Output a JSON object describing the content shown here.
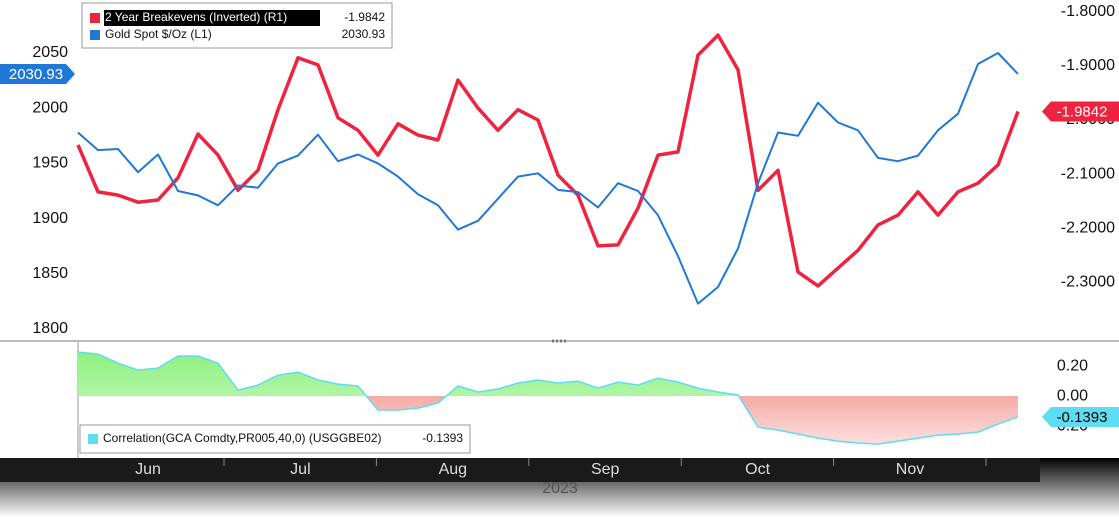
{
  "chart_data": [
    {
      "type": "line",
      "ylim": [
        1790,
        2098
      ],
      "yticks": [
        1800,
        1850,
        1900,
        1950,
        2000,
        2050
      ],
      "y2lim": [
        -2.407,
        -1.778
      ],
      "y2ticks": [
        {
          "value": -1.8,
          "label": "-1.8000"
        },
        {
          "value": -1.9,
          "label": "-1.9000"
        },
        {
          "value": -2.0,
          "label": "-2.0000"
        },
        {
          "value": -2.1,
          "label": "-2.1000"
        },
        {
          "value": -2.2,
          "label": "-2.2000"
        },
        {
          "value": -2.3,
          "label": "-2.3000"
        }
      ],
      "series": [
        {
          "name": "2 Year Breakevens (Inverted) (R1)",
          "color": "#ee2340",
          "axis": "y2",
          "values": [
            -2.046,
            -2.133,
            -2.139,
            -2.152,
            -2.148,
            -2.107,
            -2.026,
            -2.065,
            -2.13,
            -2.093,
            -1.981,
            -1.885,
            -1.898,
            -1.996,
            -2.019,
            -2.065,
            -2.007,
            -2.028,
            -2.037,
            -1.926,
            -1.978,
            -2.019,
            -1.981,
            -2.0,
            -2.102,
            -2.139,
            -2.233,
            -2.231,
            -2.163,
            -2.065,
            -2.059,
            -1.88,
            -1.843,
            -1.907,
            -2.13,
            -2.093,
            -2.281,
            -2.307,
            -2.274,
            -2.241,
            -2.194,
            -2.176,
            -2.133,
            -2.176,
            -2.133,
            -2.117,
            -2.083,
            -1.9842
          ]
        },
        {
          "name": "Gold Spot $/Oz (L1)",
          "color": "#1f78d6",
          "values": [
            1978,
            1962,
            1963,
            1942,
            1958,
            1925,
            1921,
            1912,
            1930,
            1928,
            1950,
            1957,
            1976,
            1952,
            1958,
            1950,
            1938,
            1922,
            1912,
            1890,
            1898,
            1918,
            1938,
            1941,
            1926,
            1924,
            1910,
            1932,
            1925,
            1903,
            1866,
            1823,
            1838,
            1873,
            1932,
            1978,
            1975,
            2005,
            1987,
            1980,
            1955,
            1952,
            1957,
            1980,
            1995,
            2040,
            2050,
            2030.93
          ]
        }
      ]
    },
    {
      "type": "area",
      "name": "Correlation(GCA Comdty,PR005,40,0) (USGGBE02)",
      "color": "#5edcf2",
      "ylim": [
        -0.413,
        0.347
      ],
      "yticks": [
        {
          "value": 0.2,
          "label": "0.20"
        },
        {
          "value": 0,
          "label": "0.00"
        },
        {
          "value": -0.2,
          "label": "-0.20"
        }
      ],
      "values": [
        0.293,
        0.28,
        0.22,
        0.173,
        0.187,
        0.267,
        0.267,
        0.22,
        0.04,
        0.073,
        0.14,
        0.16,
        0.107,
        0.08,
        0.067,
        -0.093,
        -0.093,
        -0.08,
        -0.047,
        0.067,
        0.027,
        0.047,
        0.087,
        0.107,
        0.087,
        0.1,
        0.053,
        0.093,
        0.073,
        0.12,
        0.093,
        0.053,
        0.027,
        0.007,
        -0.207,
        -0.227,
        -0.253,
        -0.28,
        -0.3,
        -0.313,
        -0.32,
        -0.3,
        -0.28,
        -0.26,
        -0.253,
        -0.24,
        -0.187,
        -0.1393
      ],
      "x_tick_labels": [
        "Jun",
        "Jul",
        "Aug",
        "Sep",
        "Oct",
        "Nov"
      ],
      "xlabel": "2023"
    }
  ]
}
